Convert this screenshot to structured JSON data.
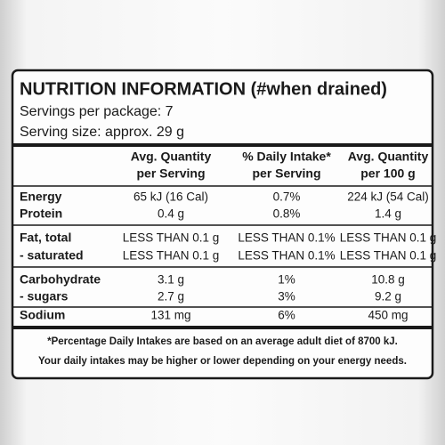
{
  "title": "NUTRITION INFORMATION (#when drained)",
  "servings": [
    "Servings per package: 7",
    "Serving size: approx. 29 g"
  ],
  "table": {
    "header": [
      [
        "Avg. Quantity",
        "per Serving"
      ],
      [
        "% Daily Intake*",
        "per Serving"
      ],
      [
        "Avg. Quantity",
        "per 100 g"
      ]
    ],
    "rows": [
      [
        "Energy",
        "65 kJ (16 Cal)",
        "0.7%",
        "224 kJ (54 Cal)"
      ],
      [
        "Protein",
        "0.4 g",
        "0.8%",
        "1.4 g"
      ],
      [
        "Fat, total",
        "LESS THAN 0.1 g",
        "LESS THAN 0.1%",
        "LESS THAN 0.1 g"
      ],
      [
        "- saturated",
        "LESS THAN 0.1 g",
        "LESS THAN 0.1%",
        "LESS THAN 0.1 g"
      ],
      [
        "Carbohydrate",
        "3.1 g",
        "1%",
        "10.8 g"
      ],
      [
        "- sugars",
        "2.7 g",
        "3%",
        "9.2 g"
      ],
      [
        "Sodium",
        "131 mg",
        "6%",
        "450 mg"
      ]
    ]
  },
  "footnote": [
    "*Percentage Daily Intakes are based on an average adult diet of 8700 kJ.",
    "Your daily intakes may be higher or lower depending on your energy needs."
  ]
}
